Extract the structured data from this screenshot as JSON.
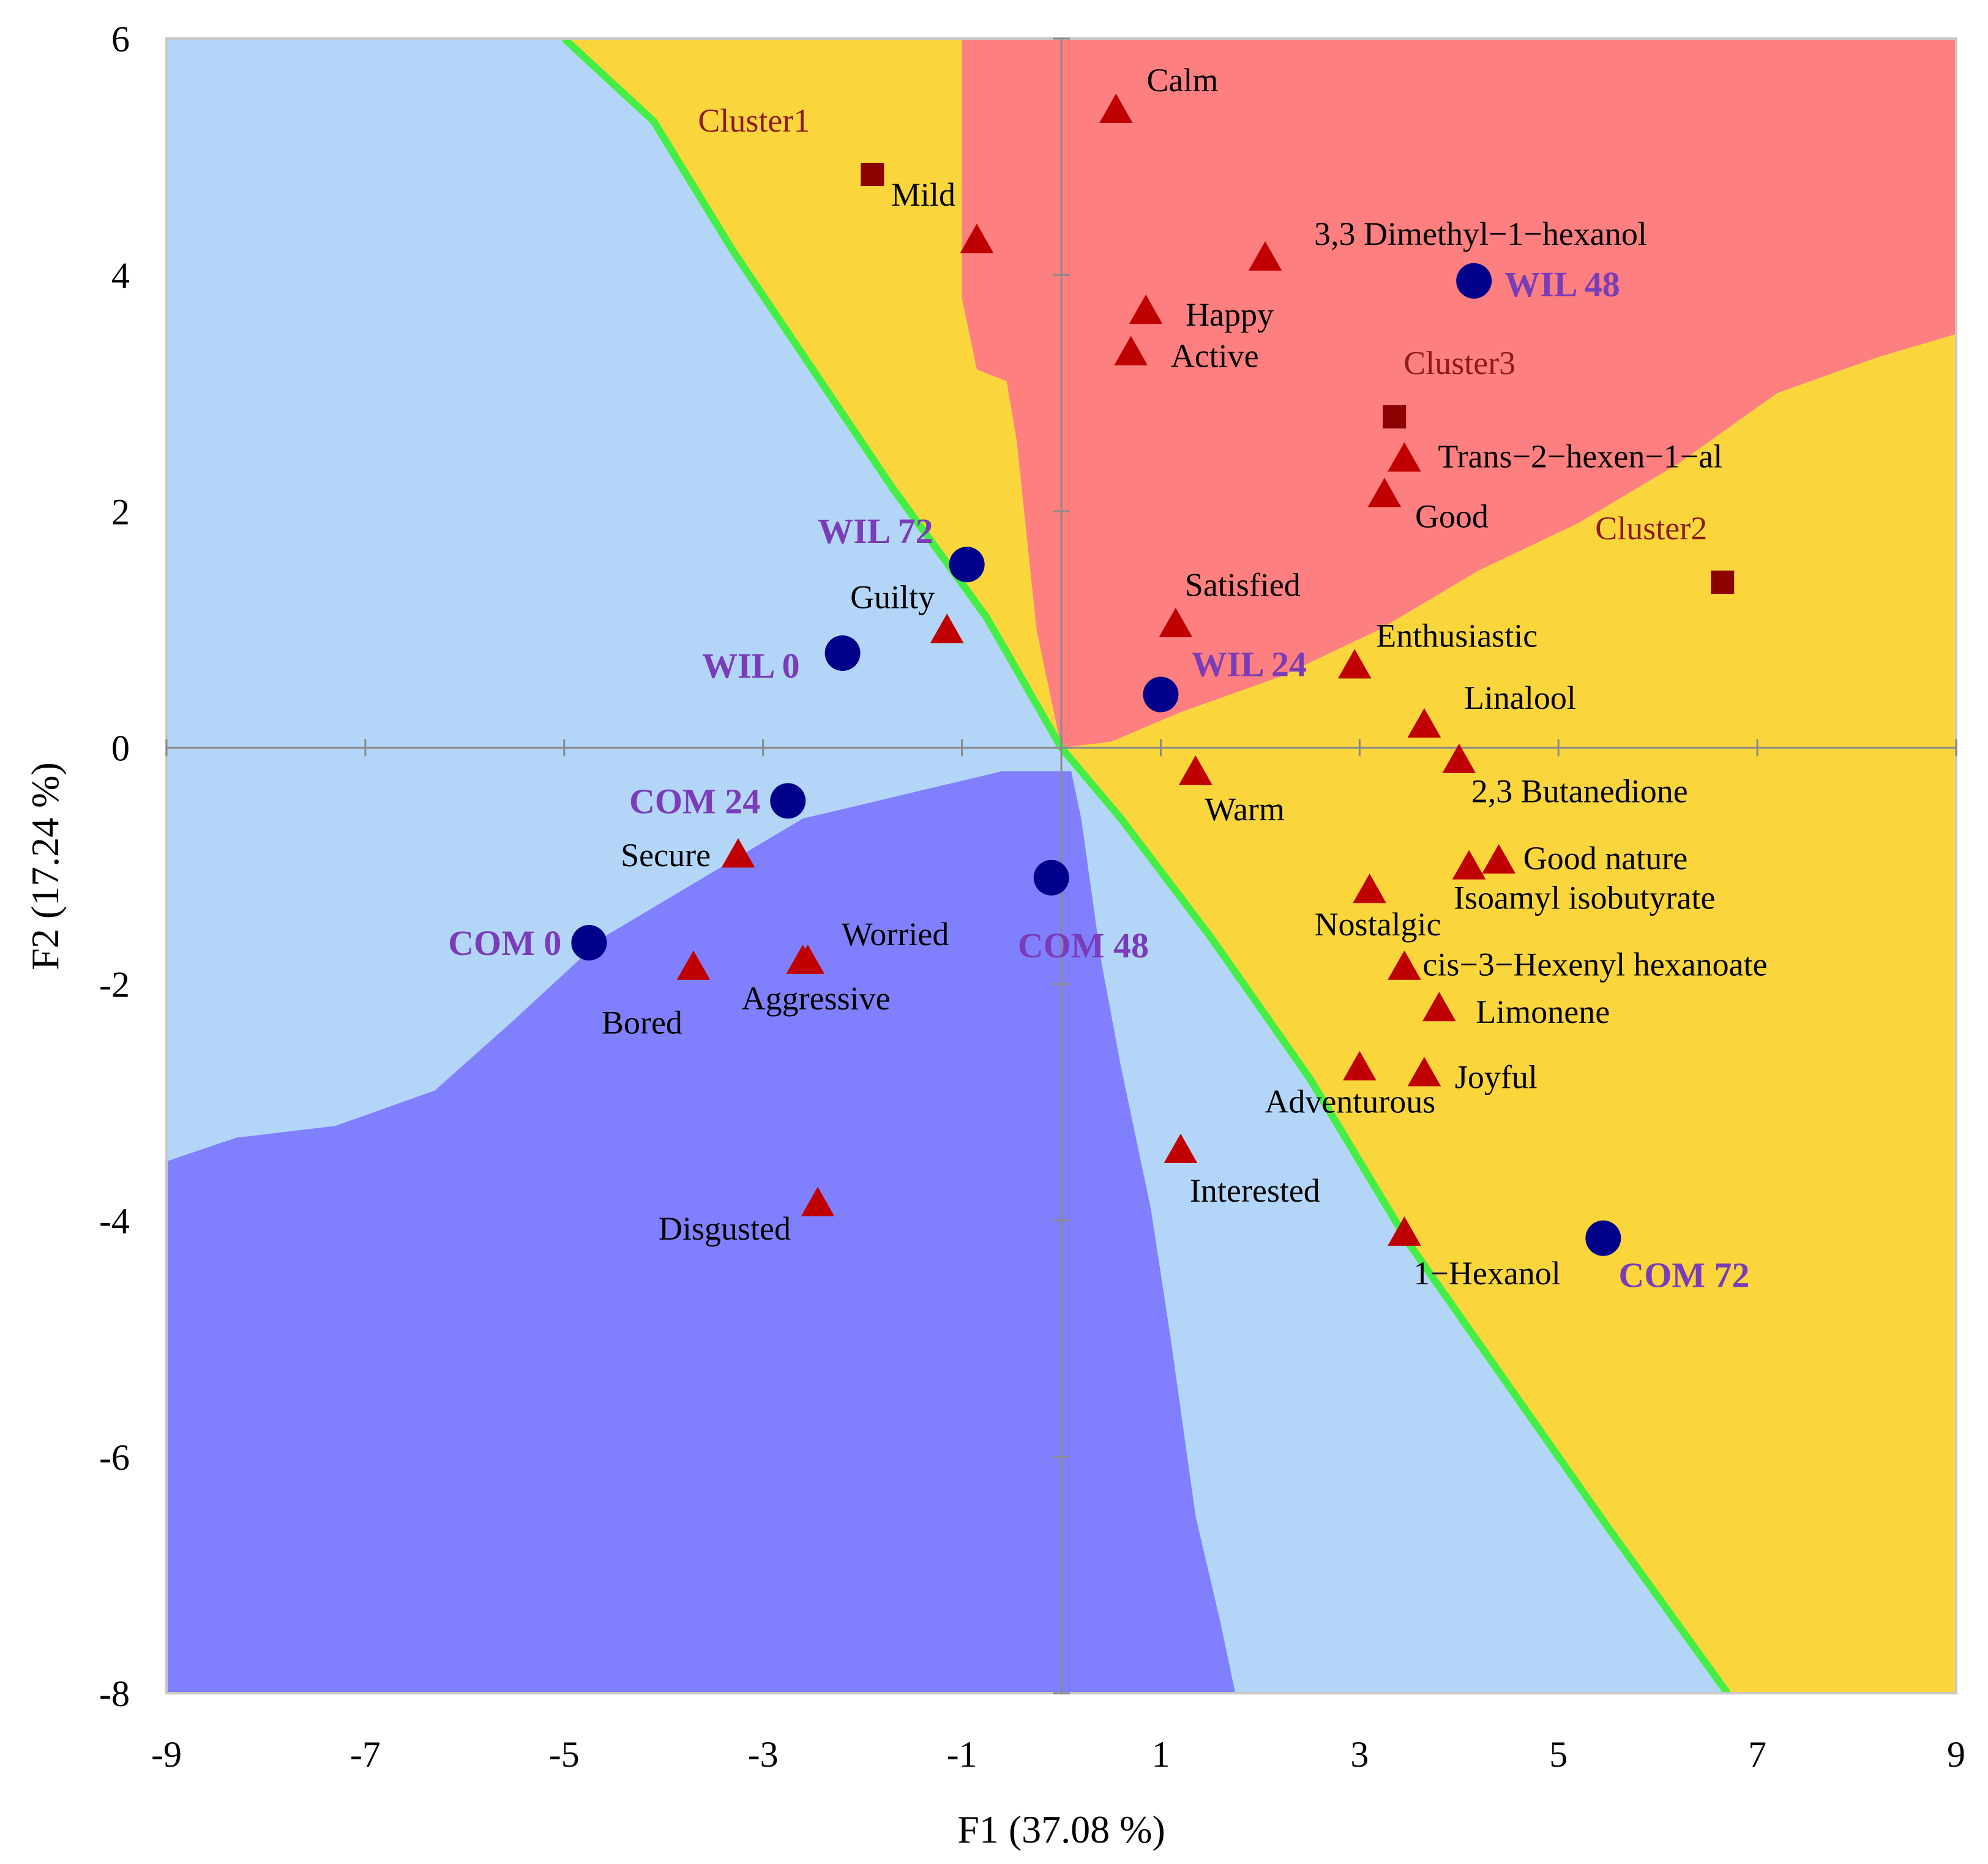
{
  "chart_data": {
    "type": "scatter",
    "xlabel": "F1 (37.08 %)",
    "ylabel": "F2 (17.24 %)",
    "xlim": [
      -9,
      9
    ],
    "ylim": [
      -8,
      6
    ],
    "xticks": [
      "-9",
      "-7",
      "-5",
      "-3",
      "-1",
      "1",
      "3",
      "5",
      "7",
      "9"
    ],
    "yticks": [
      "6",
      "4",
      "2",
      "0",
      "-2",
      "-4",
      "-6",
      "-8"
    ],
    "grid": false,
    "colors": {
      "cluster1_region": "#b3d6f8",
      "cluster2_region": "#fad63c",
      "cluster3_region": "#fe7f7f",
      "cluster4_region": "#8080fe",
      "boundary": "#44ee44",
      "attribute_marker": "#c00000",
      "sample_marker": "#00008b",
      "centroid_marker": "#8b0000",
      "sample_label": "#7a3cb8",
      "cluster_label": "#8b1a1a"
    },
    "attributes": [
      {
        "label": "Calm",
        "x": 0.55,
        "y": 5.4
      },
      {
        "label": "Mild",
        "x": -0.85,
        "y": 4.3
      },
      {
        "label": "3,3 Dimethyl−1−hexanol",
        "x": 2.05,
        "y": 4.15
      },
      {
        "label": "Happy",
        "x": 0.85,
        "y": 3.7
      },
      {
        "label": "Active",
        "x": 0.7,
        "y": 3.35
      },
      {
        "label": "Trans−2−hexen−1−al",
        "x": 3.45,
        "y": 2.45
      },
      {
        "label": "Good",
        "x": 3.25,
        "y": 2.15
      },
      {
        "label": "Guilty",
        "x": -1.15,
        "y": 1.0
      },
      {
        "label": "Satisfied",
        "x": 1.15,
        "y": 1.05
      },
      {
        "label": "Enthusiastic",
        "x": 2.95,
        "y": 0.7
      },
      {
        "label": "Linalool",
        "x": 3.65,
        "y": 0.2
      },
      {
        "label": "Warm",
        "x": 1.35,
        "y": -0.2
      },
      {
        "label": "2,3 Butanedione",
        "x": 4.0,
        "y": -0.1
      },
      {
        "label": "Secure",
        "x": -3.25,
        "y": -0.9
      },
      {
        "label": "Good nature",
        "x": 4.4,
        "y": -0.95
      },
      {
        "label": "Isoamyl isobutyrate",
        "x": 4.1,
        "y": -1.0
      },
      {
        "label": "Nostalgic",
        "x": 3.1,
        "y": -1.2
      },
      {
        "label": "Worried",
        "x": -2.55,
        "y": -1.8
      },
      {
        "label": "Bored",
        "x": -3.7,
        "y": -1.85
      },
      {
        "label": "cis−3−Hexenyl hexanoate",
        "x": 3.45,
        "y": -1.85
      },
      {
        "label": "Aggressive",
        "x": -2.6,
        "y": -1.8
      },
      {
        "label": "Limonene",
        "x": 3.8,
        "y": -2.2
      },
      {
        "label": "Adventurous",
        "x": 3.0,
        "y": -2.7
      },
      {
        "label": "Joyful",
        "x": 3.65,
        "y": -2.75
      },
      {
        "label": "Interested",
        "x": 1.2,
        "y": -3.4
      },
      {
        "label": "Disgusted",
        "x": -2.45,
        "y": -3.85
      },
      {
        "label": "1−Hexanol",
        "x": 3.45,
        "y": -4.1
      }
    ],
    "samples": [
      {
        "label": "WIL 48",
        "x": 4.15,
        "y": 3.95
      },
      {
        "label": "WIL 72",
        "x": -0.95,
        "y": 1.55
      },
      {
        "label": "WIL 0",
        "x": -2.2,
        "y": 0.8
      },
      {
        "label": "WIL 24",
        "x": 1.0,
        "y": 0.45
      },
      {
        "label": "COM 24",
        "x": -2.75,
        "y": -0.45
      },
      {
        "label": "COM 48",
        "x": -0.1,
        "y": -1.1
      },
      {
        "label": "COM 0",
        "x": -4.75,
        "y": -1.65
      },
      {
        "label": "COM 72",
        "x": 5.45,
        "y": -4.15
      }
    ],
    "centroids": [
      {
        "label": "Cluster1",
        "x": -1.9,
        "y": 4.85
      },
      {
        "label": "Cluster3",
        "x": 3.35,
        "y": 2.8
      },
      {
        "label": "Cluster2",
        "x": 6.65,
        "y": 1.4
      }
    ]
  }
}
